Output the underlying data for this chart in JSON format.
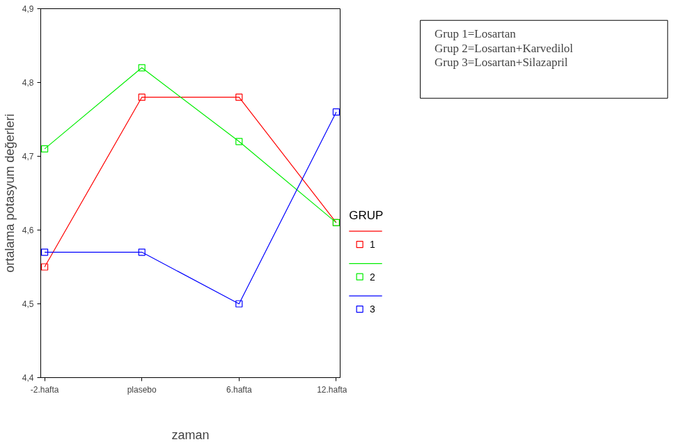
{
  "chart_data": {
    "type": "line",
    "xlabel": "zaman",
    "ylabel": "ortalama potasyum değerleri",
    "legend_title": "GRUP",
    "categories": [
      "-2.hafta",
      "plasebo",
      "6.hafta",
      "12.hafta"
    ],
    "series": [
      {
        "name": "1",
        "color": "#ff0000",
        "values": [
          4.55,
          4.78,
          4.78,
          4.61
        ]
      },
      {
        "name": "2",
        "color": "#00ee00",
        "values": [
          4.71,
          4.82,
          4.72,
          4.61
        ]
      },
      {
        "name": "3",
        "color": "#0000ff",
        "values": [
          4.57,
          4.57,
          4.5,
          4.76
        ]
      }
    ],
    "ylim": [
      4.4,
      4.9
    ],
    "yticks": [
      {
        "value": 4.4,
        "label": "4,4"
      },
      {
        "value": 4.5,
        "label": "4,5"
      },
      {
        "value": 4.6,
        "label": "4,6"
      },
      {
        "value": 4.7,
        "label": "4,7"
      },
      {
        "value": 4.8,
        "label": "4,8"
      },
      {
        "value": 4.9,
        "label": "4,9"
      }
    ],
    "marker": "square",
    "legend": "right",
    "grid": false,
    "annotations": [
      "Grup 1=Losartan",
      "Grup 2=Losartan+Karvedilol",
      "Grup 3=Losartan+Silazapril"
    ]
  }
}
